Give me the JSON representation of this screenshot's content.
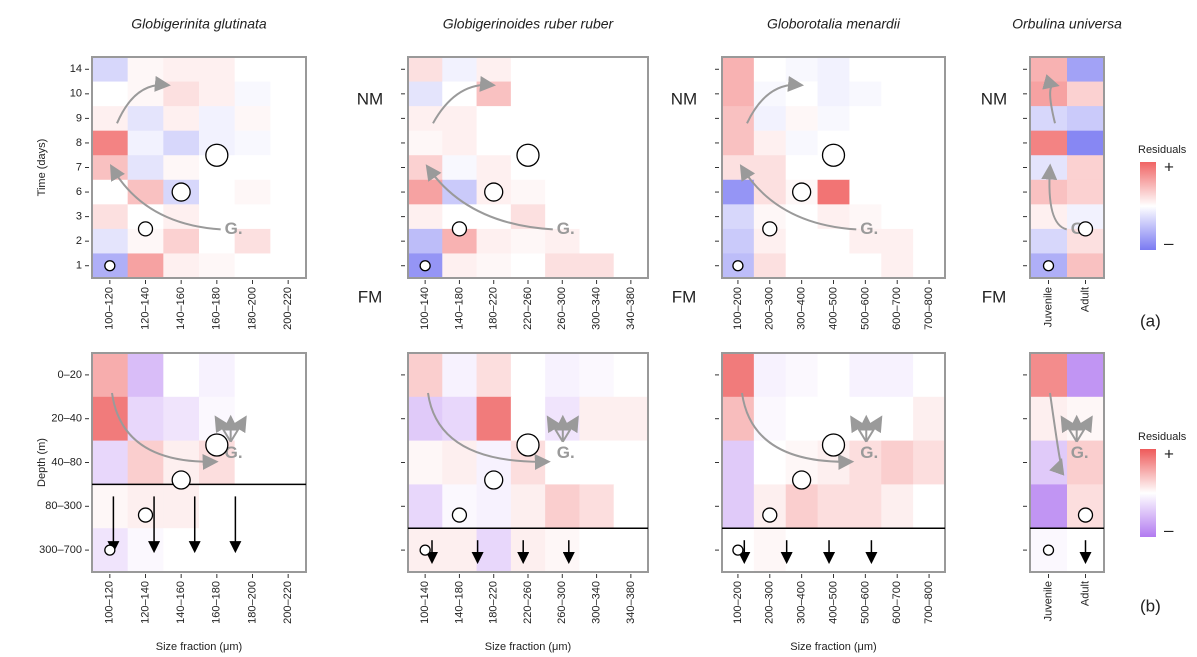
{
  "side_labels": {
    "nm": "NM",
    "fm": "FM"
  },
  "chart_data": [
    {
      "type": "heatmap",
      "title": "Globigerinita glutinata",
      "ylabel": "Time (days)",
      "annotation": "G.",
      "x": [
        "100–120",
        "120–140",
        "140–160",
        "160–180",
        "180–200",
        "200–220"
      ],
      "y": [
        "14",
        "10",
        "9",
        "8",
        "7",
        "6",
        "3",
        "2",
        "1"
      ],
      "high_color": "#f06464",
      "low_color": "#7a7af2",
      "values": [
        [
          -0.3,
          0.05,
          0.1,
          0.1,
          0,
          0
        ],
        [
          0,
          0.05,
          0.2,
          0.1,
          -0.05,
          0
        ],
        [
          0.1,
          -0.2,
          0.1,
          -0.1,
          0.05,
          0
        ],
        [
          0.8,
          -0.1,
          -0.3,
          -0.1,
          -0.05,
          0
        ],
        [
          0.4,
          -0.2,
          0.05,
          0,
          0,
          0
        ],
        [
          0,
          0.4,
          -0.3,
          0,
          0.05,
          0
        ],
        [
          0.2,
          0,
          0.1,
          0,
          0,
          0
        ],
        [
          -0.2,
          0.05,
          0.3,
          0,
          0.2,
          0
        ],
        [
          -0.6,
          0.6,
          0.1,
          0.05,
          0,
          0
        ]
      ]
    },
    {
      "type": "heatmap",
      "title": "Globigerinoides ruber ruber",
      "annotation": "G.",
      "x": [
        "100–140",
        "140–180",
        "180–220",
        "220–260",
        "260–300",
        "300–340",
        "340–380"
      ],
      "high_color": "#f06464",
      "low_color": "#7a7af2",
      "values": [
        [
          0.2,
          -0.1,
          0.1,
          0,
          0,
          0,
          0
        ],
        [
          -0.2,
          0,
          0.4,
          0,
          0,
          0,
          0
        ],
        [
          0.1,
          0.1,
          0,
          0,
          0,
          0,
          0
        ],
        [
          0.05,
          0.1,
          0,
          0,
          0,
          0,
          0
        ],
        [
          0.3,
          -0.05,
          0.1,
          0,
          0,
          0,
          0
        ],
        [
          0.6,
          -0.4,
          0.1,
          0.05,
          0,
          0,
          0
        ],
        [
          0.1,
          0,
          0,
          0.2,
          0,
          0,
          0
        ],
        [
          -0.5,
          0.5,
          0.1,
          0.05,
          0.1,
          0,
          0
        ],
        [
          -0.8,
          0.1,
          0.05,
          0,
          0.2,
          0.2,
          0
        ]
      ]
    },
    {
      "type": "heatmap",
      "title": "Globorotalia menardii",
      "annotation": "G.",
      "x": [
        "100–200",
        "200–300",
        "300–400",
        "400–500",
        "500–600",
        "600–700",
        "700–800"
      ],
      "high_color": "#f06464",
      "low_color": "#7a7af2",
      "values": [
        [
          0.5,
          0,
          -0.05,
          -0.1,
          0,
          0,
          0
        ],
        [
          0.5,
          -0.05,
          0,
          -0.1,
          -0.05,
          0,
          0
        ],
        [
          0.4,
          -0.1,
          0.05,
          -0.05,
          0,
          0,
          0
        ],
        [
          0.4,
          0.1,
          -0.05,
          0,
          0,
          0,
          0
        ],
        [
          0.2,
          0.2,
          0,
          0,
          0,
          0,
          0
        ],
        [
          -0.8,
          0.2,
          0.05,
          0.9,
          0,
          0,
          0
        ],
        [
          -0.3,
          0.05,
          0,
          0.1,
          0.05,
          0,
          0
        ],
        [
          -0.4,
          0.1,
          0,
          0,
          0.1,
          0.1,
          0
        ],
        [
          -0.5,
          0.2,
          0,
          0,
          0,
          0.1,
          0
        ]
      ]
    },
    {
      "type": "heatmap",
      "title": "Orbulina universa",
      "annotation": "G.",
      "panel_label": "(a)",
      "x": [
        "Juvenile",
        "Adult"
      ],
      "high_color": "#f06464",
      "low_color": "#7a7af2",
      "legend": {
        "title": "Residuals",
        "high": "+",
        "low": "–"
      },
      "values": [
        [
          0.5,
          -0.7
        ],
        [
          0.6,
          0.3
        ],
        [
          -0.3,
          -0.4
        ],
        [
          0.8,
          -0.9
        ],
        [
          -0.2,
          0.3
        ],
        [
          0.4,
          0.3
        ],
        [
          0.1,
          -0.1
        ],
        [
          -0.3,
          0.2
        ],
        [
          -0.6,
          0.4
        ]
      ]
    },
    {
      "type": "heatmap",
      "ylabel": "Depth (m)",
      "xlabel": "Size fraction (μm)",
      "annotation": "G.",
      "x": [
        "100–120",
        "120–140",
        "140–160",
        "160–180",
        "180–200",
        "200–220"
      ],
      "y": [
        "0–20",
        "20–40",
        "40–80",
        "80–300",
        "300–700"
      ],
      "high_color": "#ee5a5a",
      "low_color": "#b27af0",
      "values": [
        [
          0.5,
          -0.5,
          0,
          -0.1,
          0,
          0
        ],
        [
          0.8,
          -0.3,
          -0.2,
          -0.05,
          0,
          0
        ],
        [
          -0.3,
          0.3,
          0.1,
          0.2,
          0,
          0
        ],
        [
          0.05,
          0.1,
          0.1,
          0,
          0,
          0
        ],
        [
          -0.2,
          -0.05,
          0,
          0,
          0,
          0
        ]
      ]
    },
    {
      "type": "heatmap",
      "xlabel": "Size fraction (μm)",
      "annotation": "G.",
      "x": [
        "100–140",
        "140–180",
        "180–220",
        "220–260",
        "260–300",
        "300–340",
        "340–380"
      ],
      "high_color": "#ee5a5a",
      "low_color": "#b27af0",
      "values": [
        [
          0.3,
          -0.1,
          0.2,
          0,
          -0.1,
          -0.05,
          0
        ],
        [
          -0.4,
          -0.3,
          0.8,
          0,
          -0.2,
          0.1,
          0.1
        ],
        [
          0.05,
          0.1,
          -0.1,
          0.2,
          0,
          0,
          0
        ],
        [
          -0.3,
          -0.05,
          -0.1,
          0.1,
          0.3,
          0.2,
          0
        ],
        [
          0.1,
          0.1,
          -0.3,
          0.1,
          0.05,
          0,
          0
        ]
      ]
    },
    {
      "type": "heatmap",
      "xlabel": "Size fraction (μm)",
      "annotation": "G.",
      "x": [
        "100–200",
        "200–300",
        "300–400",
        "400–500",
        "500–600",
        "600–700",
        "700–800"
      ],
      "high_color": "#ee5a5a",
      "low_color": "#b27af0",
      "values": [
        [
          0.8,
          -0.1,
          -0.05,
          0,
          -0.1,
          -0.1,
          0
        ],
        [
          0.4,
          -0.05,
          0,
          0,
          0,
          0,
          0.1
        ],
        [
          -0.4,
          0,
          0.05,
          0.1,
          0.2,
          0.3,
          0.2
        ],
        [
          -0.4,
          0.1,
          0.3,
          0.2,
          0.2,
          0.1,
          0
        ],
        [
          0,
          0.05,
          0,
          0,
          0,
          0,
          0
        ]
      ]
    },
    {
      "type": "heatmap",
      "annotation": "G.",
      "panel_label": "(b)",
      "x": [
        "Juvenile",
        "Adult"
      ],
      "high_color": "#ee5a5a",
      "low_color": "#b27af0",
      "legend": {
        "title": "Residuals",
        "high": "+",
        "low": "–"
      },
      "values": [
        [
          0.7,
          -0.8
        ],
        [
          0.1,
          0.05
        ],
        [
          -0.4,
          0.3
        ],
        [
          -0.8,
          0.2
        ],
        [
          -0.05,
          0
        ]
      ]
    }
  ]
}
